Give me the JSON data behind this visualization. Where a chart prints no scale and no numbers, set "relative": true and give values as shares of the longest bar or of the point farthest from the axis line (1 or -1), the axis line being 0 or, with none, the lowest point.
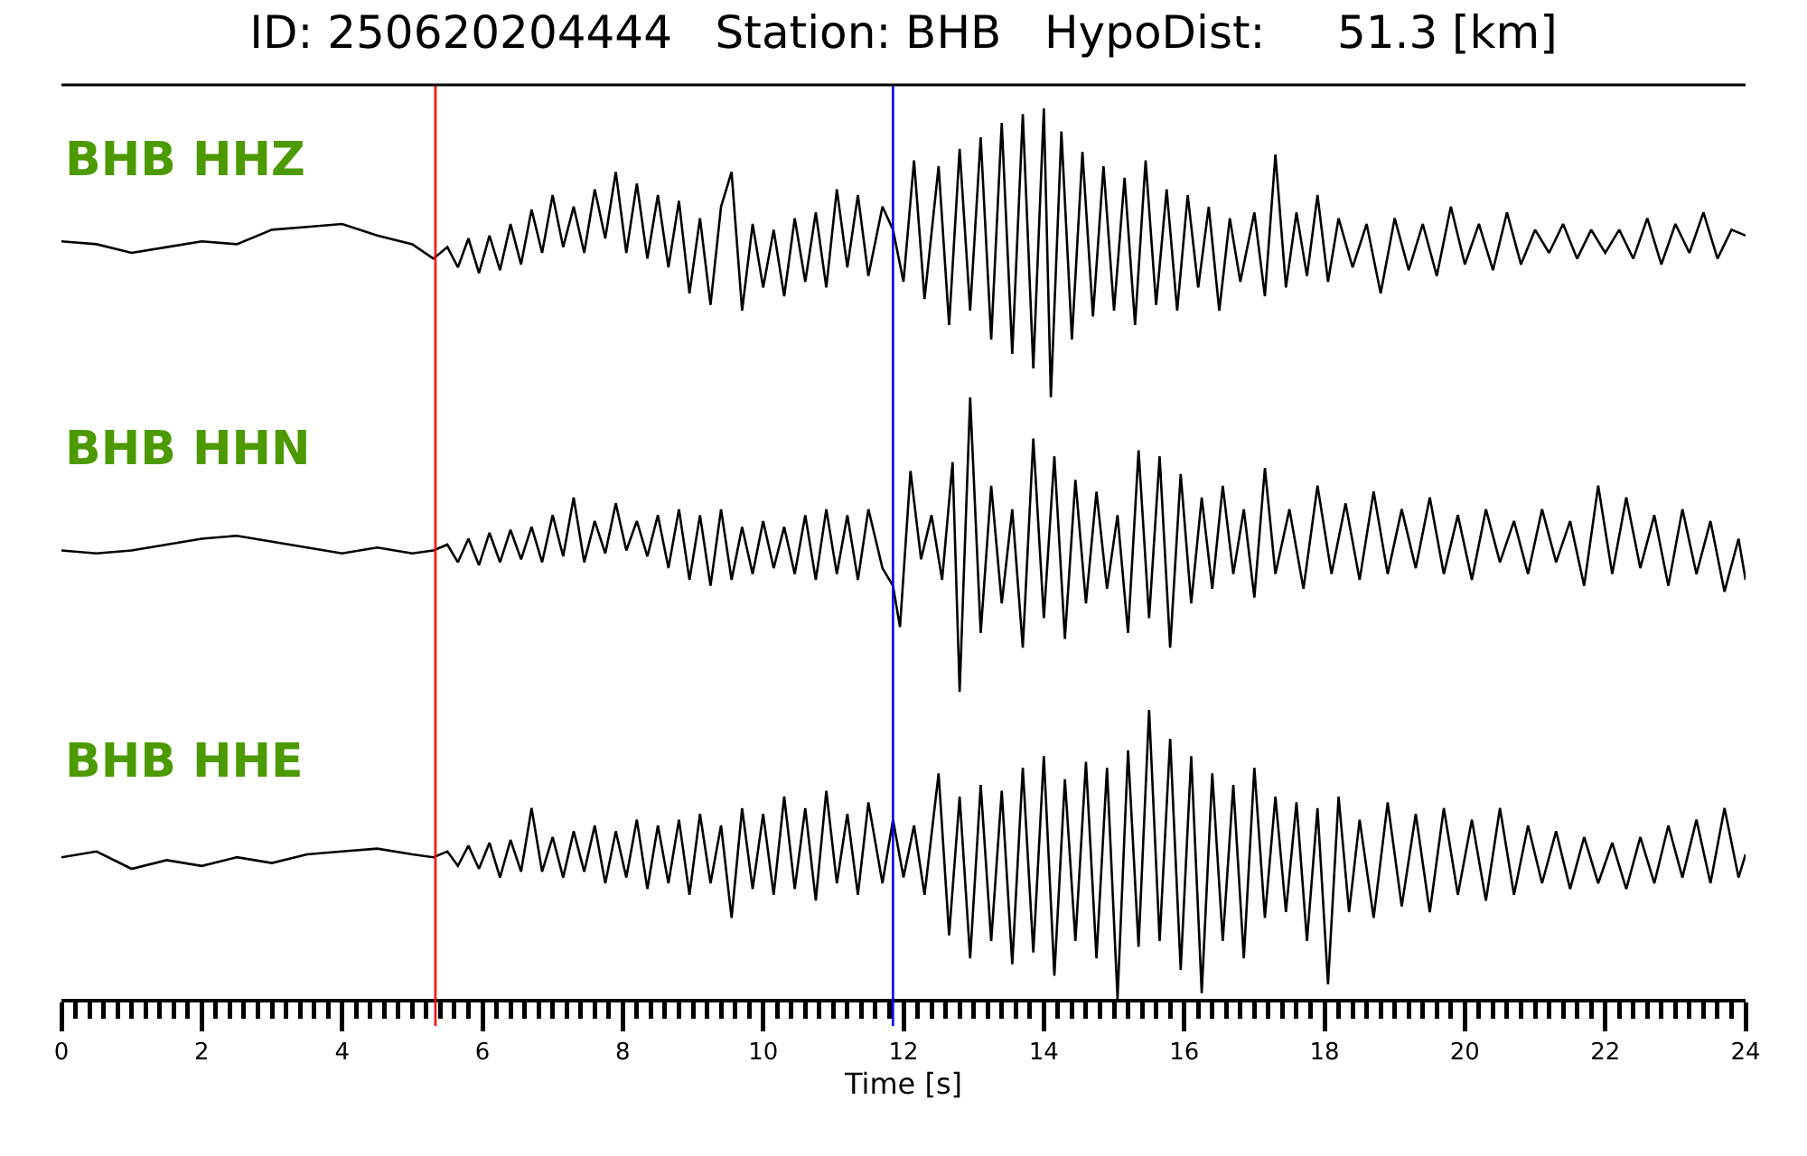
{
  "chart_data": [
    {
      "type": "line",
      "title": "ID: 250620204444   Station: BHB   HypoDist:     51.3 [km]",
      "annotations": [
        "BHB HHZ"
      ],
      "relative": true,
      "xlim": [
        0,
        24
      ],
      "tick_labels": false,
      "ref_lines": [
        {
          "axis": "x",
          "value": 5.33,
          "color": "#ff0000"
        },
        {
          "axis": "x",
          "value": 11.85,
          "color": "#0000ff"
        }
      ],
      "series": [
        {
          "color": "#000000",
          "x": [
            0,
            0.5,
            1,
            1.5,
            2,
            2.5,
            3,
            3.5,
            4,
            4.5,
            5,
            5.3,
            5.5,
            5.65,
            5.8,
            5.95,
            6.1,
            6.25,
            6.4,
            6.55,
            6.7,
            6.85,
            7.0,
            7.15,
            7.3,
            7.45,
            7.6,
            7.75,
            7.9,
            8.05,
            8.2,
            8.35,
            8.5,
            8.65,
            8.8,
            8.95,
            9.1,
            9.25,
            9.4,
            9.55,
            9.7,
            9.85,
            10.0,
            10.15,
            10.3,
            10.45,
            10.6,
            10.75,
            10.9,
            11.05,
            11.2,
            11.35,
            11.5,
            11.7,
            11.85,
            12.0,
            12.15,
            12.3,
            12.5,
            12.65,
            12.8,
            12.95,
            13.1,
            13.25,
            13.4,
            13.55,
            13.7,
            13.85,
            14.0,
            14.1,
            14.25,
            14.4,
            14.55,
            14.7,
            14.85,
            15.0,
            15.15,
            15.3,
            15.45,
            15.6,
            15.75,
            15.9,
            16.05,
            16.2,
            16.35,
            16.5,
            16.65,
            16.8,
            17.0,
            17.15,
            17.3,
            17.45,
            17.6,
            17.75,
            17.9,
            18.05,
            18.2,
            18.4,
            18.6,
            18.8,
            19.0,
            19.2,
            19.4,
            19.6,
            19.8,
            20.0,
            20.2,
            20.4,
            20.6,
            20.8,
            21.0,
            21.2,
            21.4,
            21.6,
            21.8,
            22.0,
            22.2,
            22.4,
            22.6,
            22.8,
            23.0,
            23.2,
            23.4,
            23.6,
            23.8,
            24.0
          ],
          "values": [
            0.54,
            0.53,
            0.5,
            0.52,
            0.54,
            0.53,
            0.58,
            0.59,
            0.6,
            0.56,
            0.53,
            0.48,
            0.52,
            0.45,
            0.55,
            0.43,
            0.56,
            0.44,
            0.6,
            0.46,
            0.65,
            0.5,
            0.7,
            0.52,
            0.66,
            0.5,
            0.72,
            0.55,
            0.78,
            0.5,
            0.74,
            0.48,
            0.7,
            0.45,
            0.68,
            0.36,
            0.62,
            0.32,
            0.66,
            0.78,
            0.3,
            0.6,
            0.38,
            0.58,
            0.35,
            0.62,
            0.4,
            0.64,
            0.38,
            0.72,
            0.45,
            0.7,
            0.42,
            0.66,
            0.58,
            0.4,
            0.82,
            0.34,
            0.8,
            0.25,
            0.86,
            0.3,
            0.9,
            0.2,
            0.95,
            0.15,
            0.98,
            0.1,
            1.0,
            0.0,
            0.92,
            0.2,
            0.85,
            0.28,
            0.8,
            0.3,
            0.76,
            0.25,
            0.82,
            0.32,
            0.72,
            0.3,
            0.7,
            0.38,
            0.66,
            0.3,
            0.62,
            0.4,
            0.64,
            0.35,
            0.84,
            0.38,
            0.64,
            0.42,
            0.7,
            0.4,
            0.62,
            0.45,
            0.6,
            0.36,
            0.62,
            0.44,
            0.6,
            0.42,
            0.66,
            0.46,
            0.6,
            0.44,
            0.64,
            0.46,
            0.58,
            0.5,
            0.6,
            0.48,
            0.58,
            0.5,
            0.58,
            0.48,
            0.62,
            0.46,
            0.6,
            0.5,
            0.64,
            0.48,
            0.58,
            0.56
          ]
        }
      ]
    },
    {
      "type": "line",
      "annotations": [
        "BHB HHN"
      ],
      "relative": true,
      "xlim": [
        0,
        24
      ],
      "tick_labels": false,
      "ref_lines": [
        {
          "axis": "x",
          "value": 5.33,
          "color": "#ff0000"
        },
        {
          "axis": "x",
          "value": 11.85,
          "color": "#0000ff"
        }
      ],
      "series": [
        {
          "color": "#000000",
          "x": [
            0,
            0.5,
            1,
            1.5,
            2,
            2.5,
            3,
            3.5,
            4,
            4.5,
            5,
            5.3,
            5.5,
            5.65,
            5.8,
            5.95,
            6.1,
            6.25,
            6.4,
            6.55,
            6.7,
            6.85,
            7.0,
            7.15,
            7.3,
            7.45,
            7.6,
            7.75,
            7.9,
            8.05,
            8.2,
            8.35,
            8.5,
            8.65,
            8.8,
            8.95,
            9.1,
            9.25,
            9.4,
            9.55,
            9.7,
            9.85,
            10.0,
            10.15,
            10.3,
            10.45,
            10.6,
            10.75,
            10.9,
            11.05,
            11.2,
            11.35,
            11.5,
            11.7,
            11.85,
            11.95,
            12.1,
            12.25,
            12.4,
            12.55,
            12.7,
            12.8,
            12.95,
            13.1,
            13.25,
            13.4,
            13.55,
            13.7,
            13.85,
            14.0,
            14.15,
            14.3,
            14.45,
            14.6,
            14.75,
            14.9,
            15.05,
            15.2,
            15.35,
            15.5,
            15.65,
            15.8,
            15.95,
            16.1,
            16.25,
            16.4,
            16.55,
            16.7,
            16.85,
            17.0,
            17.15,
            17.3,
            17.5,
            17.7,
            17.9,
            18.1,
            18.3,
            18.5,
            18.7,
            18.9,
            19.1,
            19.3,
            19.5,
            19.7,
            19.9,
            20.1,
            20.3,
            20.5,
            20.7,
            20.9,
            21.1,
            21.3,
            21.5,
            21.7,
            21.9,
            22.1,
            22.3,
            22.5,
            22.7,
            22.9,
            23.1,
            23.3,
            23.5,
            23.7,
            23.9,
            24.0
          ],
          "values": [
            0.48,
            0.47,
            0.48,
            0.5,
            0.52,
            0.53,
            0.51,
            0.49,
            0.47,
            0.49,
            0.47,
            0.48,
            0.5,
            0.44,
            0.52,
            0.43,
            0.54,
            0.44,
            0.55,
            0.45,
            0.56,
            0.44,
            0.6,
            0.46,
            0.66,
            0.44,
            0.58,
            0.47,
            0.64,
            0.48,
            0.58,
            0.46,
            0.6,
            0.42,
            0.62,
            0.38,
            0.6,
            0.36,
            0.62,
            0.38,
            0.56,
            0.4,
            0.58,
            0.42,
            0.56,
            0.4,
            0.6,
            0.38,
            0.62,
            0.4,
            0.6,
            0.38,
            0.62,
            0.42,
            0.36,
            0.22,
            0.75,
            0.45,
            0.6,
            0.38,
            0.78,
            0.0,
            1.0,
            0.2,
            0.7,
            0.3,
            0.62,
            0.15,
            0.86,
            0.25,
            0.8,
            0.18,
            0.72,
            0.3,
            0.68,
            0.35,
            0.6,
            0.2,
            0.82,
            0.25,
            0.8,
            0.15,
            0.74,
            0.3,
            0.66,
            0.35,
            0.7,
            0.4,
            0.62,
            0.32,
            0.76,
            0.4,
            0.62,
            0.35,
            0.7,
            0.4,
            0.64,
            0.38,
            0.68,
            0.4,
            0.62,
            0.42,
            0.66,
            0.4,
            0.6,
            0.38,
            0.62,
            0.44,
            0.58,
            0.4,
            0.62,
            0.44,
            0.58,
            0.36,
            0.7,
            0.4,
            0.66,
            0.42,
            0.6,
            0.36,
            0.62,
            0.4,
            0.58,
            0.34,
            0.52,
            0.38
          ]
        }
      ]
    },
    {
      "type": "line",
      "annotations": [
        "BHB HHE"
      ],
      "relative": true,
      "xlim": [
        0,
        24
      ],
      "tick_labels": "x",
      "xlabel": "Time [s]",
      "xticks": [
        0,
        {
          "value": 0.2,
          "label": null
        },
        {
          "value": 0.4,
          "label": null
        },
        {
          "value": 0.6,
          "label": null
        },
        {
          "value": 0.8,
          "label": null
        },
        {
          "value": 1,
          "label": null
        },
        {
          "value": 1.2,
          "label": null
        },
        {
          "value": 1.4,
          "label": null
        },
        {
          "value": 1.6,
          "label": null
        },
        {
          "value": 1.8,
          "label": null
        },
        2,
        {
          "value": 2.2,
          "label": null
        },
        {
          "value": 2.4,
          "label": null
        },
        {
          "value": 2.6,
          "label": null
        },
        {
          "value": 2.8,
          "label": null
        },
        {
          "value": 3,
          "label": null
        },
        {
          "value": 3.2,
          "label": null
        },
        {
          "value": 3.4,
          "label": null
        },
        {
          "value": 3.6,
          "label": null
        },
        {
          "value": 3.8,
          "label": null
        },
        4,
        {
          "value": 4.2,
          "label": null
        },
        {
          "value": 4.4,
          "label": null
        },
        {
          "value": 4.6,
          "label": null
        },
        {
          "value": 4.8,
          "label": null
        },
        {
          "value": 5,
          "label": null
        },
        {
          "value": 5.2,
          "label": null
        },
        {
          "value": 5.4,
          "label": null
        },
        {
          "value": 5.6,
          "label": null
        },
        {
          "value": 5.8,
          "label": null
        },
        6,
        {
          "value": 6.2,
          "label": null
        },
        {
          "value": 6.4,
          "label": null
        },
        {
          "value": 6.6,
          "label": null
        },
        {
          "value": 6.8,
          "label": null
        },
        {
          "value": 7,
          "label": null
        },
        {
          "value": 7.2,
          "label": null
        },
        {
          "value": 7.4,
          "label": null
        },
        {
          "value": 7.6,
          "label": null
        },
        {
          "value": 7.8,
          "label": null
        },
        8,
        {
          "value": 8.2,
          "label": null
        },
        {
          "value": 8.4,
          "label": null
        },
        {
          "value": 8.6,
          "label": null
        },
        {
          "value": 8.8,
          "label": null
        },
        {
          "value": 9,
          "label": null
        },
        {
          "value": 9.2,
          "label": null
        },
        {
          "value": 9.4,
          "label": null
        },
        {
          "value": 9.6,
          "label": null
        },
        {
          "value": 9.8,
          "label": null
        },
        10,
        {
          "value": 10.2,
          "label": null
        },
        {
          "value": 10.4,
          "label": null
        },
        {
          "value": 10.6,
          "label": null
        },
        {
          "value": 10.8,
          "label": null
        },
        {
          "value": 11,
          "label": null
        },
        {
          "value": 11.2,
          "label": null
        },
        {
          "value": 11.4,
          "label": null
        },
        {
          "value": 11.6,
          "label": null
        },
        {
          "value": 11.8,
          "label": null
        },
        12,
        {
          "value": 12.2,
          "label": null
        },
        {
          "value": 12.4,
          "label": null
        },
        {
          "value": 12.6,
          "label": null
        },
        {
          "value": 12.8,
          "label": null
        },
        {
          "value": 13,
          "label": null
        },
        {
          "value": 13.2,
          "label": null
        },
        {
          "value": 13.4,
          "label": null
        },
        {
          "value": 13.6,
          "label": null
        },
        {
          "value": 13.8,
          "label": null
        },
        14,
        {
          "value": 14.2,
          "label": null
        },
        {
          "value": 14.4,
          "label": null
        },
        {
          "value": 14.6,
          "label": null
        },
        {
          "value": 14.8,
          "label": null
        },
        {
          "value": 15,
          "label": null
        },
        {
          "value": 15.2,
          "label": null
        },
        {
          "value": 15.4,
          "label": null
        },
        {
          "value": 15.6,
          "label": null
        },
        {
          "value": 15.8,
          "label": null
        },
        16,
        {
          "value": 16.2,
          "label": null
        },
        {
          "value": 16.4,
          "label": null
        },
        {
          "value": 16.6,
          "label": null
        },
        {
          "value": 16.8,
          "label": null
        },
        {
          "value": 17,
          "label": null
        },
        {
          "value": 17.2,
          "label": null
        },
        {
          "value": 17.4,
          "label": null
        },
        {
          "value": 17.6,
          "label": null
        },
        {
          "value": 17.8,
          "label": null
        },
        18,
        {
          "value": 18.2,
          "label": null
        },
        {
          "value": 18.4,
          "label": null
        },
        {
          "value": 18.6,
          "label": null
        },
        {
          "value": 18.8,
          "label": null
        },
        {
          "value": 19,
          "label": null
        },
        {
          "value": 19.2,
          "label": null
        },
        {
          "value": 19.4,
          "label": null
        },
        {
          "value": 19.6,
          "label": null
        },
        {
          "value": 19.8,
          "label": null
        },
        20,
        {
          "value": 20.2,
          "label": null
        },
        {
          "value": 20.4,
          "label": null
        },
        {
          "value": 20.6,
          "label": null
        },
        {
          "value": 20.8,
          "label": null
        },
        {
          "value": 21,
          "label": null
        },
        {
          "value": 21.2,
          "label": null
        },
        {
          "value": 21.4,
          "label": null
        },
        {
          "value": 21.6,
          "label": null
        },
        {
          "value": 21.8,
          "label": null
        },
        22,
        {
          "value": 22.2,
          "label": null
        },
        {
          "value": 22.4,
          "label": null
        },
        {
          "value": 22.6,
          "label": null
        },
        {
          "value": 22.8,
          "label": null
        },
        {
          "value": 23,
          "label": null
        },
        {
          "value": 23.2,
          "label": null
        },
        {
          "value": 23.4,
          "label": null
        },
        {
          "value": 23.6,
          "label": null
        },
        {
          "value": 23.8,
          "label": null
        },
        24
      ],
      "ref_lines": [
        {
          "axis": "x",
          "value": 5.33,
          "color": "#ff0000"
        },
        {
          "axis": "x",
          "value": 11.85,
          "color": "#0000ff"
        }
      ],
      "series": [
        {
          "color": "#000000",
          "x": [
            0,
            0.5,
            1,
            1.5,
            2,
            2.5,
            3,
            3.5,
            4,
            4.5,
            5,
            5.3,
            5.5,
            5.65,
            5.8,
            5.95,
            6.1,
            6.25,
            6.4,
            6.55,
            6.7,
            6.85,
            7.0,
            7.15,
            7.3,
            7.45,
            7.6,
            7.75,
            7.9,
            8.05,
            8.2,
            8.35,
            8.5,
            8.65,
            8.8,
            8.95,
            9.1,
            9.25,
            9.4,
            9.55,
            9.7,
            9.85,
            10.0,
            10.15,
            10.3,
            10.45,
            10.6,
            10.75,
            10.9,
            11.05,
            11.2,
            11.35,
            11.5,
            11.7,
            11.85,
            12.0,
            12.15,
            12.3,
            12.5,
            12.65,
            12.8,
            12.95,
            13.1,
            13.25,
            13.4,
            13.55,
            13.7,
            13.85,
            14.0,
            14.15,
            14.3,
            14.45,
            14.6,
            14.75,
            14.9,
            15.05,
            15.2,
            15.35,
            15.5,
            15.65,
            15.8,
            15.95,
            16.1,
            16.25,
            16.4,
            16.55,
            16.7,
            16.85,
            17.0,
            17.15,
            17.3,
            17.45,
            17.6,
            17.75,
            17.9,
            18.05,
            18.2,
            18.35,
            18.5,
            18.7,
            18.9,
            19.1,
            19.3,
            19.5,
            19.7,
            19.9,
            20.1,
            20.3,
            20.5,
            20.7,
            20.9,
            21.1,
            21.3,
            21.5,
            21.7,
            21.9,
            22.1,
            22.3,
            22.5,
            22.7,
            22.9,
            23.1,
            23.3,
            23.5,
            23.7,
            23.9,
            24.0
          ],
          "values": [
            0.49,
            0.51,
            0.45,
            0.48,
            0.46,
            0.49,
            0.47,
            0.5,
            0.51,
            0.52,
            0.5,
            0.49,
            0.51,
            0.46,
            0.53,
            0.45,
            0.54,
            0.42,
            0.55,
            0.44,
            0.66,
            0.44,
            0.56,
            0.42,
            0.58,
            0.44,
            0.6,
            0.4,
            0.58,
            0.42,
            0.62,
            0.38,
            0.6,
            0.4,
            0.62,
            0.36,
            0.64,
            0.4,
            0.6,
            0.28,
            0.66,
            0.38,
            0.64,
            0.36,
            0.7,
            0.38,
            0.66,
            0.34,
            0.72,
            0.4,
            0.64,
            0.36,
            0.68,
            0.4,
            0.62,
            0.42,
            0.6,
            0.36,
            0.78,
            0.22,
            0.7,
            0.14,
            0.74,
            0.2,
            0.72,
            0.12,
            0.8,
            0.16,
            0.84,
            0.08,
            0.76,
            0.2,
            0.82,
            0.14,
            0.8,
            0.0,
            0.86,
            0.18,
            1.0,
            0.2,
            0.9,
            0.1,
            0.84,
            0.02,
            0.78,
            0.2,
            0.74,
            0.14,
            0.8,
            0.28,
            0.7,
            0.3,
            0.68,
            0.2,
            0.66,
            0.05,
            0.7,
            0.3,
            0.62,
            0.28,
            0.68,
            0.32,
            0.64,
            0.3,
            0.66,
            0.36,
            0.62,
            0.34,
            0.66,
            0.36,
            0.6,
            0.4,
            0.58,
            0.38,
            0.56,
            0.4,
            0.54,
            0.38,
            0.56,
            0.4,
            0.6,
            0.42,
            0.62,
            0.4,
            0.66,
            0.42,
            0.5
          ]
        }
      ]
    }
  ]
}
